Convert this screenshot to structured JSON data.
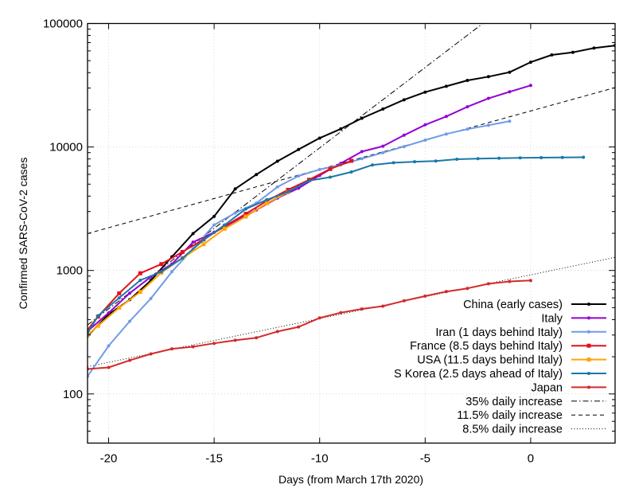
{
  "chart_data": {
    "type": "line",
    "title": "",
    "xlabel": "Days (from March 17th 2020)",
    "ylabel": "Confirmed SARS-CoV-2 cases",
    "xlim": [
      -21,
      4
    ],
    "ylim": [
      40,
      100000
    ],
    "yscale": "log",
    "grid": true,
    "legend_position": "bottom-right",
    "xticks": [
      -20,
      -15,
      -10,
      -5,
      0
    ],
    "xtick_labels": [
      "-20",
      "-15",
      "-10",
      "-5",
      "0"
    ],
    "yticks": [
      100,
      1000,
      10000,
      100000
    ],
    "ytick_labels": [
      "100",
      "1000",
      "10000",
      "100000"
    ],
    "series": [
      {
        "name": "China (early cases)",
        "color": "#000000",
        "marker": "dot",
        "x": [
          -21,
          -20,
          -19,
          -18,
          -17,
          -16,
          -15,
          -14,
          -13,
          -12,
          -11,
          -10,
          -9,
          -8,
          -7,
          -6,
          -5,
          -4,
          -3,
          -2,
          -1,
          0,
          1,
          2,
          3,
          4
        ],
        "y": [
          294,
          440,
          580,
          830,
          1290,
          1990,
          2740,
          4580,
          5980,
          7670,
          9550,
          11800,
          14000,
          17100,
          20300,
          24100,
          27800,
          31000,
          34600,
          37100,
          40300,
          48600,
          55600,
          58400,
          63200,
          66300
        ]
      },
      {
        "name": "Italy",
        "color": "#9400d3",
        "marker": "dot",
        "x": [
          -21,
          -20,
          -19,
          -18,
          -17,
          -16,
          -15,
          -14,
          -13,
          -12,
          -11,
          -10,
          -9,
          -8,
          -7,
          -6,
          -5,
          -4,
          -3,
          -2,
          -1,
          0
        ],
        "y": [
          322,
          453,
          655,
          888,
          1128,
          1694,
          2036,
          2502,
          3089,
          3858,
          4636,
          5883,
          7375,
          9172,
          10149,
          12462,
          15113,
          17660,
          21157,
          24747,
          27980,
          31506
        ]
      },
      {
        "name": "Iran (1 days behind Italy)",
        "color": "#6f9be8",
        "marker": "dot",
        "x": [
          -21,
          -20,
          -19,
          -18,
          -17,
          -16,
          -15,
          -14,
          -13,
          -12,
          -11,
          -10,
          -9,
          -8,
          -7,
          -6,
          -5,
          -4,
          -3,
          -2,
          -1
        ],
        "y": [
          139,
          245,
          388,
          593,
          978,
          1501,
          2336,
          2922,
          3513,
          4747,
          5823,
          6566,
          7161,
          8042,
          9000,
          10075,
          11364,
          12729,
          13938,
          14991,
          16169
        ]
      },
      {
        "name": "France (8.5 days behind Italy)",
        "color": "#e5101c",
        "marker": "square",
        "x": [
          -21,
          -20.5,
          -19.5,
          -18.5,
          -17.5,
          -16.5,
          -15.5,
          -14.5,
          -13.5,
          -12.5,
          -11.5,
          -10.5,
          -9.5,
          -8.5
        ],
        "y": [
          330,
          423,
          653,
          949,
          1126,
          1412,
          1784,
          2281,
          2876,
          3661,
          4499,
          5423,
          6633,
          7730
        ]
      },
      {
        "name": "USA (11.5 days behind Italy)",
        "color": "#ffa500",
        "marker": "square",
        "x": [
          -21,
          -20.5,
          -19.5,
          -18.5,
          -17.5,
          -16.5,
          -15.5,
          -14.5,
          -13.5,
          -12.5,
          -11.5
        ],
        "y": [
          300,
          357,
          500,
          670,
          960,
          1260,
          1630,
          2180,
          2730,
          3500,
          4310
        ]
      },
      {
        "name": "S Korea (2.5 days ahead of Italy)",
        "color": "#1a78a8",
        "marker": "dot",
        "x": [
          -21,
          -20.5,
          -19.5,
          -18.5,
          -17.5,
          -16.5,
          -15.5,
          -14.5,
          -13.5,
          -12.5,
          -11.5,
          -10.5,
          -9.5,
          -8.5,
          -7.5,
          -6.5,
          -5.5,
          -4.5,
          -3.5,
          -2.5,
          -1.5,
          -0.5,
          0.5,
          1.5,
          2.5
        ],
        "y": [
          310,
          430,
          600,
          833,
          977,
          1261,
          1766,
          2337,
          3150,
          3736,
          4335,
          5340,
          5700,
          6270,
          7150,
          7450,
          7600,
          7700,
          7950,
          8040,
          8100,
          8160,
          8200,
          8230,
          8260
        ]
      },
      {
        "name": "Japan",
        "color": "#d42a2a",
        "marker": "dot",
        "x": [
          -21,
          -20,
          -19,
          -18,
          -17,
          -16,
          -15,
          -14,
          -13,
          -12,
          -11,
          -10,
          -9,
          -8,
          -7,
          -6,
          -5,
          -4,
          -3,
          -2,
          -1,
          0
        ],
        "y": [
          159,
          164,
          187,
          211,
          232,
          241,
          257,
          272,
          285,
          320,
          349,
          413,
          455,
          488,
          514,
          568,
          620,
          675,
          716,
          780,
          814,
          829
        ]
      }
    ],
    "reference_lines": [
      {
        "name": "35% daily increase",
        "rate": 0.35,
        "anchor_x": -2.27,
        "anchor_y": 100000,
        "style": "dashdot"
      },
      {
        "name": "11.5% daily increase",
        "rate": 0.115,
        "anchor_x": -21,
        "anchor_y": 1990,
        "style": "dashed"
      },
      {
        "name": "8.5% daily increase",
        "rate": 0.085,
        "anchor_x": 4,
        "anchor_y": 1277,
        "style": "dotted"
      }
    ]
  }
}
